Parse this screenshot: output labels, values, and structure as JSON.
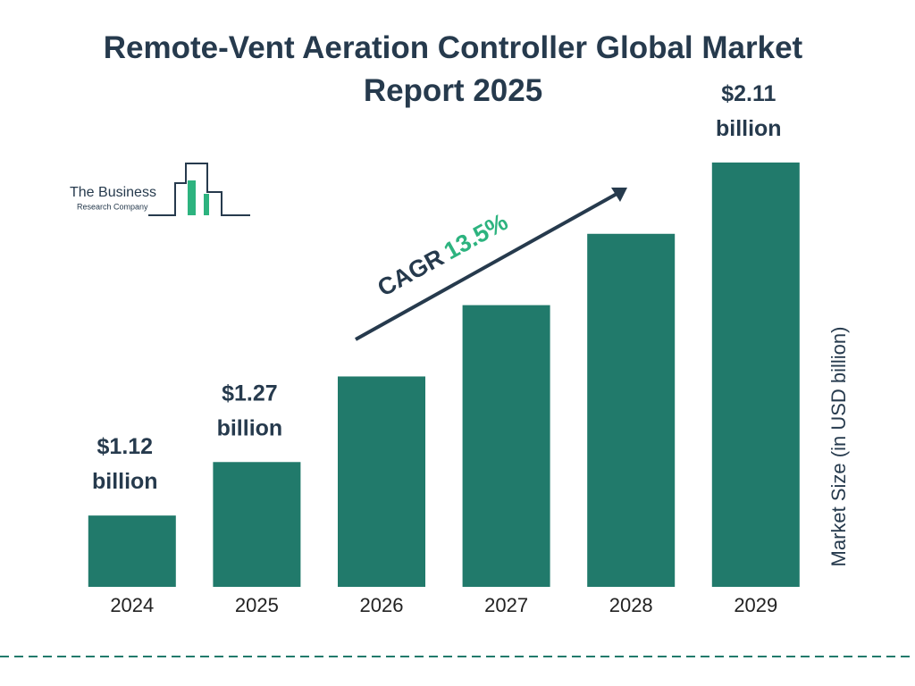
{
  "chart_data": {
    "type": "bar",
    "title": "Remote-Vent Aeration Controller Global Market Report 2025",
    "categories": [
      "2024",
      "2025",
      "2026",
      "2027",
      "2028",
      "2029"
    ],
    "values": [
      1.12,
      1.27,
      1.51,
      1.71,
      1.91,
      2.11
    ],
    "value_labels": [
      "$1.12 billion",
      "$1.27 billion",
      null,
      null,
      null,
      "$2.11 billion"
    ],
    "color": "#217a6b",
    "ylim": [
      0.92,
      2.2
    ],
    "ylabel": "Market Size (in USD billion)",
    "annotation": {
      "label": "CAGR",
      "value": "13.5%"
    },
    "logo": {
      "line1": "The Business",
      "line2": "Research Company"
    }
  }
}
